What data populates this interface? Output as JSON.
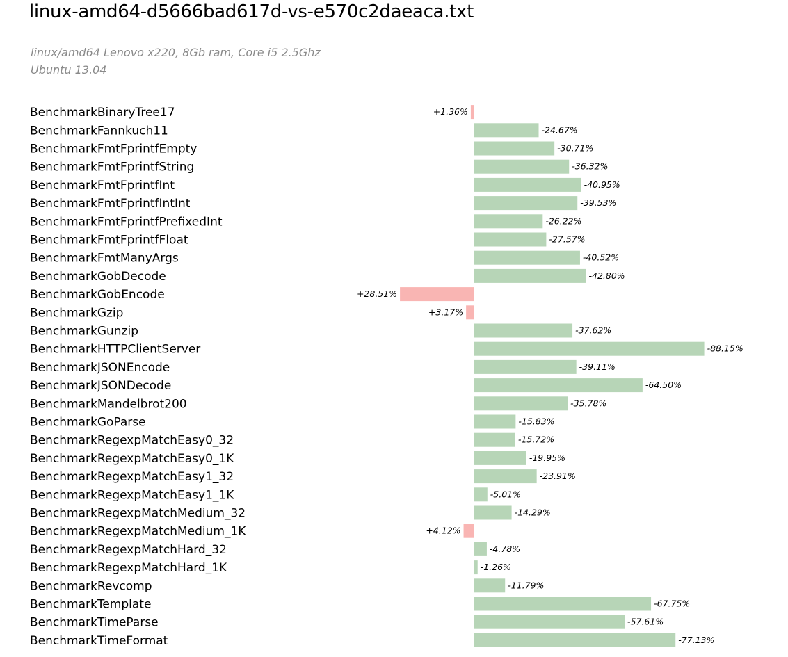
{
  "header": {
    "title": "linux-amd64-d5666bad617d-vs-e570c2daeaca.txt",
    "subtitle_line1": "linux/amd64 Lenovo x220, 8Gb ram, Core i5 2.5Ghz",
    "subtitle_line2": "Ubuntu 13.04"
  },
  "colors": {
    "improvement": "#b7d5b7",
    "regression": "#f9b5b3"
  },
  "chart_data": {
    "type": "bar",
    "orientation": "horizontal",
    "title": "linux-amd64-d5666bad617d-vs-e570c2daeaca.txt",
    "unit": "%",
    "grid": false,
    "categories": [
      "BenchmarkBinaryTree17",
      "BenchmarkFannkuch11",
      "BenchmarkFmtFprintfEmpty",
      "BenchmarkFmtFprintfString",
      "BenchmarkFmtFprintfInt",
      "BenchmarkFmtFprintfIntInt",
      "BenchmarkFmtFprintfPrefixedInt",
      "BenchmarkFmtFprintfFloat",
      "BenchmarkFmtManyArgs",
      "BenchmarkGobDecode",
      "BenchmarkGobEncode",
      "BenchmarkGzip",
      "BenchmarkGunzip",
      "BenchmarkHTTPClientServer",
      "BenchmarkJSONEncode",
      "BenchmarkJSONDecode",
      "BenchmarkMandelbrot200",
      "BenchmarkGoParse",
      "BenchmarkRegexpMatchEasy0_32",
      "BenchmarkRegexpMatchEasy0_1K",
      "BenchmarkRegexpMatchEasy1_32",
      "BenchmarkRegexpMatchEasy1_1K",
      "BenchmarkRegexpMatchMedium_32",
      "BenchmarkRegexpMatchMedium_1K",
      "BenchmarkRegexpMatchHard_32",
      "BenchmarkRegexpMatchHard_1K",
      "BenchmarkRevcomp",
      "BenchmarkTemplate",
      "BenchmarkTimeParse",
      "BenchmarkTimeFormat"
    ],
    "values": [
      1.36,
      -24.67,
      -30.71,
      -36.32,
      -40.95,
      -39.53,
      -26.22,
      -27.57,
      -40.52,
      -42.8,
      28.51,
      3.17,
      -37.62,
      -88.15,
      -39.11,
      -64.5,
      -35.78,
      -15.83,
      -15.72,
      -19.95,
      -23.91,
      -5.01,
      -14.29,
      4.12,
      -4.78,
      -1.26,
      -11.79,
      -67.75,
      -57.61,
      -77.13
    ],
    "value_labels": [
      "+1.36%",
      "-24.67%",
      "-30.71%",
      "-36.32%",
      "-40.95%",
      "-39.53%",
      "-26.22%",
      "-27.57%",
      "-40.52%",
      "-42.80%",
      "+28.51%",
      "+3.17%",
      "-37.62%",
      "-88.15%",
      "-39.11%",
      "-64.50%",
      "-35.78%",
      "-15.83%",
      "-15.72%",
      "-19.95%",
      "-23.91%",
      "-5.01%",
      "-14.29%",
      "+4.12%",
      "-4.78%",
      "-1.26%",
      "-11.79%",
      "-67.75%",
      "-57.61%",
      "-77.13%"
    ]
  }
}
